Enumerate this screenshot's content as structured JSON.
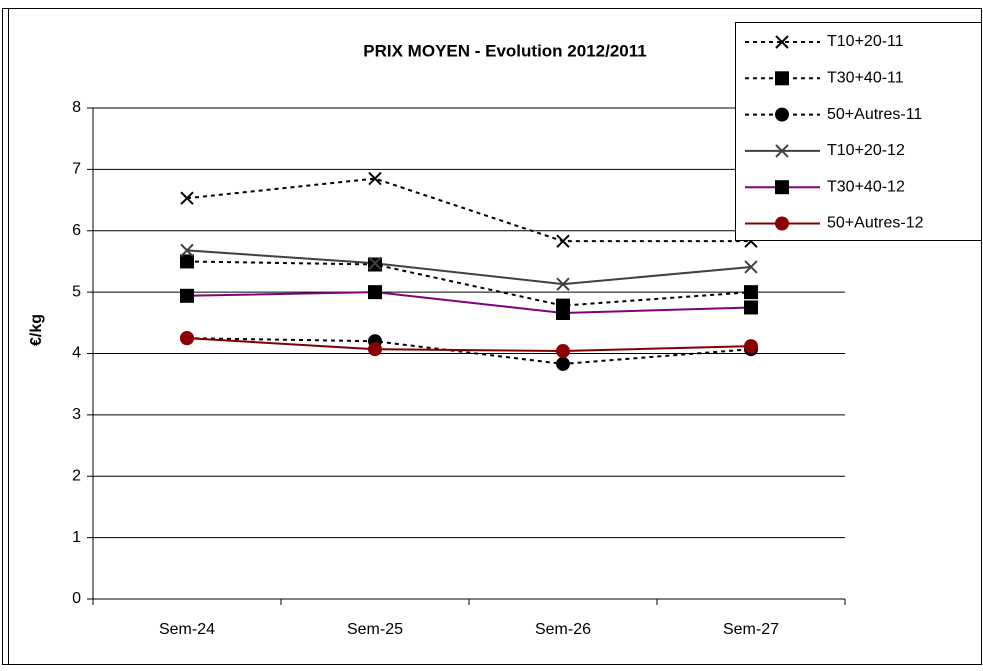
{
  "chart_data": {
    "type": "line",
    "title": "PRIX MOYEN - Evolution 2012/2011",
    "y_label": "€/kg",
    "categories": [
      "Sem-24",
      "Sem-25",
      "Sem-26",
      "Sem-27"
    ],
    "ylim": [
      0,
      8
    ],
    "yticks": [
      0,
      1,
      2,
      3,
      4,
      5,
      6,
      7,
      8
    ],
    "grid": true,
    "legend": "top-right",
    "series": [
      {
        "name": "T10+20-11",
        "color": "#000000",
        "dashed": true,
        "marker": "x",
        "marker_color": "#000000",
        "values": [
          6.53,
          6.85,
          5.83,
          5.83
        ]
      },
      {
        "name": "T30+40-11",
        "color": "#000000",
        "dashed": true,
        "marker": "square",
        "marker_color": "#000000",
        "values": [
          5.5,
          5.45,
          4.78,
          5.0
        ]
      },
      {
        "name": "50+Autres-11",
        "color": "#000000",
        "dashed": true,
        "marker": "circle",
        "marker_color": "#000000",
        "values": [
          4.25,
          4.2,
          3.83,
          4.07
        ]
      },
      {
        "name": "T10+20-12",
        "color": "#404040",
        "dashed": false,
        "marker": "x",
        "marker_color": "#404040",
        "values": [
          5.68,
          5.47,
          5.13,
          5.41
        ]
      },
      {
        "name": "T30+40-12",
        "color": "#800080",
        "dashed": false,
        "marker": "square",
        "marker_color": "#000000",
        "values": [
          4.94,
          5.0,
          4.66,
          4.75
        ]
      },
      {
        "name": "50+Autres-12",
        "color": "#800000",
        "dashed": false,
        "marker": "circle",
        "marker_color": "#8b0000",
        "values": [
          4.25,
          4.07,
          4.04,
          4.12
        ]
      }
    ]
  }
}
